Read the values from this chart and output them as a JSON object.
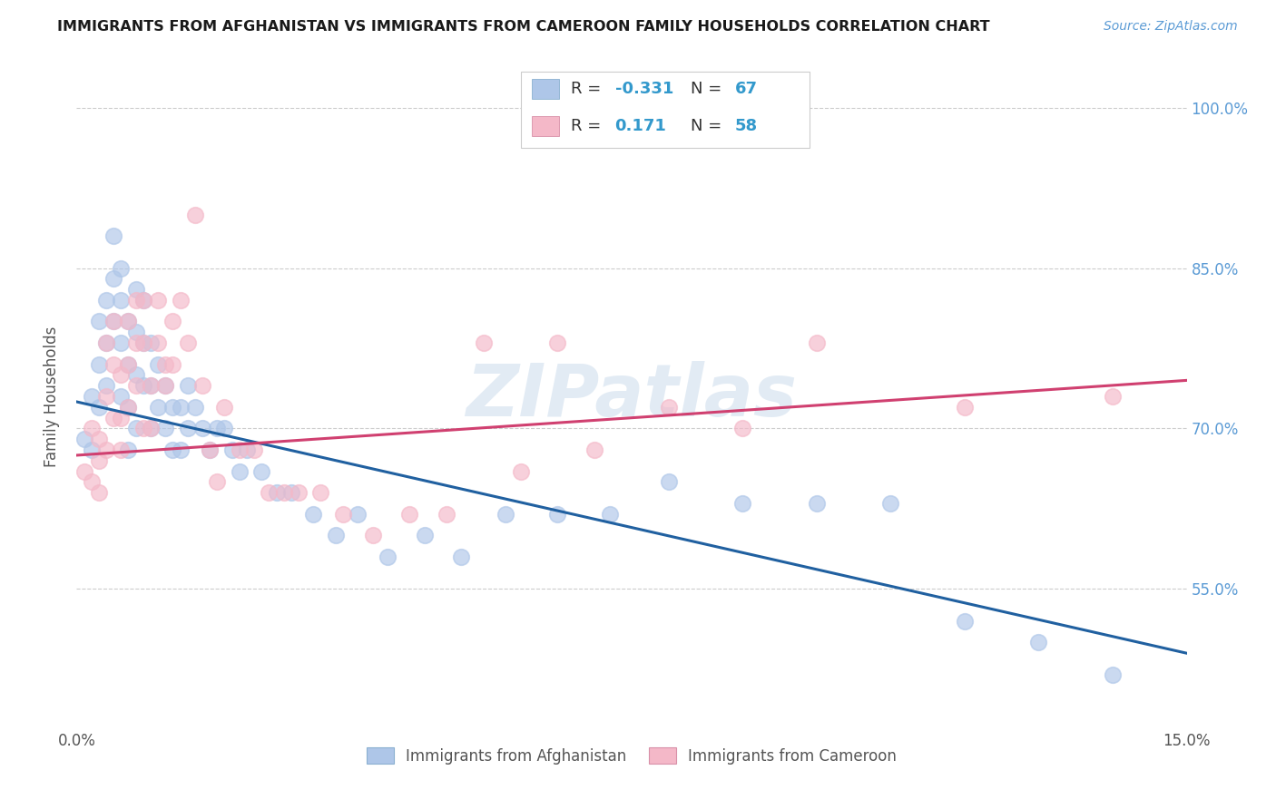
{
  "title": "IMMIGRANTS FROM AFGHANISTAN VS IMMIGRANTS FROM CAMEROON FAMILY HOUSEHOLDS CORRELATION CHART",
  "source": "Source: ZipAtlas.com",
  "ylabel": "Family Households",
  "ytick_labels": [
    "55.0%",
    "70.0%",
    "85.0%",
    "100.0%"
  ],
  "ytick_values": [
    0.55,
    0.7,
    0.85,
    1.0
  ],
  "xlim": [
    0.0,
    0.15
  ],
  "ylim": [
    0.42,
    1.04
  ],
  "color_afghanistan": "#aec6e8",
  "color_cameroon": "#f4b8c8",
  "line_color_afghanistan": "#2060a0",
  "line_color_cameroon": "#d04070",
  "watermark": "ZIPatlas",
  "afg_line_x0": 0.0,
  "afg_line_y0": 0.725,
  "afg_line_x1": 0.15,
  "afg_line_y1": 0.49,
  "cam_line_x0": 0.0,
  "cam_line_y0": 0.675,
  "cam_line_x1": 0.15,
  "cam_line_y1": 0.745,
  "afghanistan_x": [
    0.001,
    0.002,
    0.002,
    0.003,
    0.003,
    0.003,
    0.004,
    0.004,
    0.004,
    0.005,
    0.005,
    0.005,
    0.006,
    0.006,
    0.006,
    0.006,
    0.007,
    0.007,
    0.007,
    0.007,
    0.008,
    0.008,
    0.008,
    0.008,
    0.009,
    0.009,
    0.009,
    0.01,
    0.01,
    0.01,
    0.011,
    0.011,
    0.012,
    0.012,
    0.013,
    0.013,
    0.014,
    0.014,
    0.015,
    0.015,
    0.016,
    0.017,
    0.018,
    0.019,
    0.02,
    0.021,
    0.022,
    0.023,
    0.025,
    0.027,
    0.029,
    0.032,
    0.035,
    0.038,
    0.042,
    0.047,
    0.052,
    0.058,
    0.065,
    0.072,
    0.08,
    0.09,
    0.1,
    0.11,
    0.12,
    0.13,
    0.14
  ],
  "afghanistan_y": [
    0.69,
    0.73,
    0.68,
    0.8,
    0.76,
    0.72,
    0.82,
    0.78,
    0.74,
    0.88,
    0.84,
    0.8,
    0.85,
    0.82,
    0.78,
    0.73,
    0.8,
    0.76,
    0.72,
    0.68,
    0.83,
    0.79,
    0.75,
    0.7,
    0.82,
    0.78,
    0.74,
    0.78,
    0.74,
    0.7,
    0.76,
    0.72,
    0.74,
    0.7,
    0.72,
    0.68,
    0.72,
    0.68,
    0.74,
    0.7,
    0.72,
    0.7,
    0.68,
    0.7,
    0.7,
    0.68,
    0.66,
    0.68,
    0.66,
    0.64,
    0.64,
    0.62,
    0.6,
    0.62,
    0.58,
    0.6,
    0.58,
    0.62,
    0.62,
    0.62,
    0.65,
    0.63,
    0.63,
    0.63,
    0.52,
    0.5,
    0.47
  ],
  "cameroon_x": [
    0.001,
    0.002,
    0.002,
    0.003,
    0.003,
    0.003,
    0.004,
    0.004,
    0.004,
    0.005,
    0.005,
    0.005,
    0.006,
    0.006,
    0.006,
    0.007,
    0.007,
    0.007,
    0.008,
    0.008,
    0.008,
    0.009,
    0.009,
    0.009,
    0.01,
    0.01,
    0.011,
    0.011,
    0.012,
    0.012,
    0.013,
    0.013,
    0.014,
    0.015,
    0.016,
    0.017,
    0.018,
    0.019,
    0.02,
    0.022,
    0.024,
    0.026,
    0.028,
    0.03,
    0.033,
    0.036,
    0.04,
    0.045,
    0.05,
    0.055,
    0.06,
    0.065,
    0.07,
    0.08,
    0.09,
    0.1,
    0.12,
    0.14
  ],
  "cameroon_y": [
    0.66,
    0.7,
    0.65,
    0.69,
    0.67,
    0.64,
    0.78,
    0.73,
    0.68,
    0.8,
    0.76,
    0.71,
    0.75,
    0.71,
    0.68,
    0.8,
    0.76,
    0.72,
    0.82,
    0.78,
    0.74,
    0.7,
    0.82,
    0.78,
    0.74,
    0.7,
    0.82,
    0.78,
    0.76,
    0.74,
    0.8,
    0.76,
    0.82,
    0.78,
    0.9,
    0.74,
    0.68,
    0.65,
    0.72,
    0.68,
    0.68,
    0.64,
    0.64,
    0.64,
    0.64,
    0.62,
    0.6,
    0.62,
    0.62,
    0.78,
    0.66,
    0.78,
    0.68,
    0.72,
    0.7,
    0.78,
    0.72,
    0.73
  ]
}
